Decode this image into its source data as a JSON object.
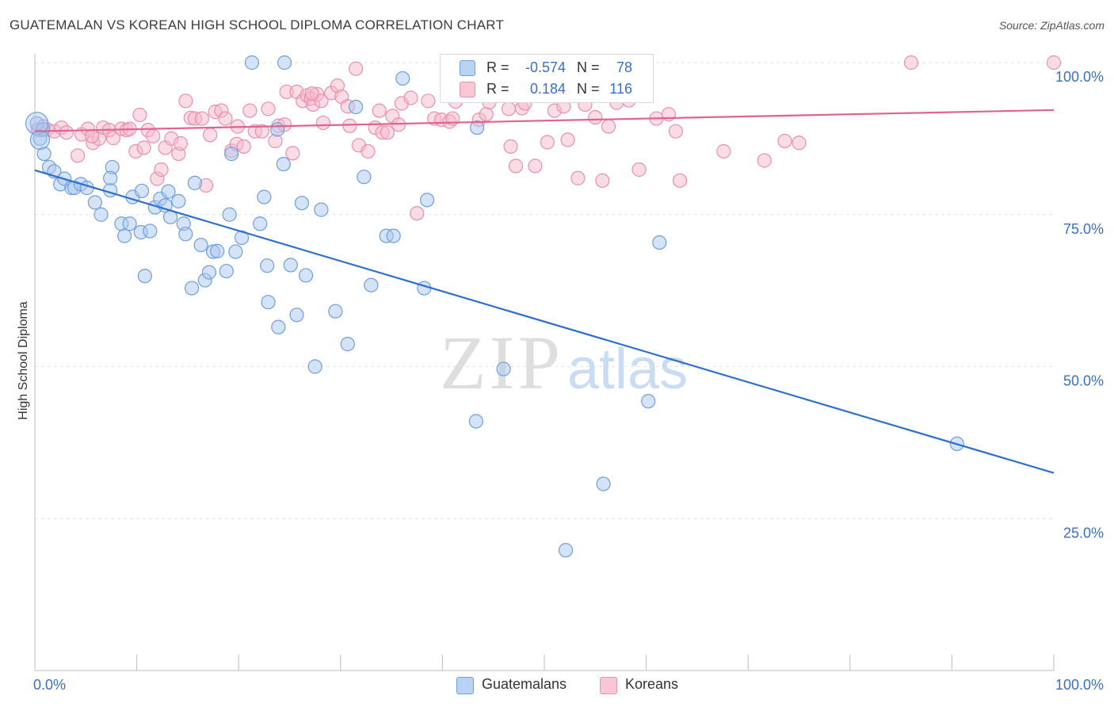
{
  "title": "GUATEMALAN VS KOREAN HIGH SCHOOL DIPLOMA CORRELATION CHART",
  "source": "Source: ZipAtlas.com",
  "watermark": {
    "zip": "ZIP",
    "atlas": "atlas"
  },
  "legend_top": [
    {
      "r_label": "R =",
      "r_value": "-0.574",
      "n_label": "N =",
      "n_value": "78"
    },
    {
      "r_label": "R =",
      "r_value": "0.184",
      "n_label": "N =",
      "n_value": "116"
    }
  ],
  "legend_bottom": [
    "Guatemalans",
    "Koreans"
  ],
  "colors": {
    "guatemalans_fill": "#a9c8f0",
    "guatemalans_stroke": "#6f9fdc",
    "guatemalans_line": "#2f6fd0",
    "koreans_fill": "#f6b9cb",
    "koreans_stroke": "#ea8fae",
    "koreans_line": "#e0628f",
    "axis_tick_label": "#3a6fc8",
    "grid": "#e2e2e2"
  },
  "chart_data": {
    "type": "scatter",
    "title": "GUATEMALAN VS KOREAN HIGH SCHOOL DIPLOMA CORRELATION CHART",
    "xlabel": "",
    "ylabel": "High School Diploma",
    "xlim": [
      0,
      100
    ],
    "ylim": [
      0,
      100
    ],
    "x_tick_labels": [
      "0.0%",
      "100.0%"
    ],
    "y_tick_labels": [
      {
        "value": 100,
        "label": "100.0%"
      },
      {
        "value": 75,
        "label": "75.0%"
      },
      {
        "value": 50,
        "label": "50.0%"
      },
      {
        "value": 25,
        "label": "25.0%"
      }
    ],
    "grid": true,
    "legend_position": "bottom",
    "series": [
      {
        "name": "Guatemalans",
        "r": -0.574,
        "n": 78,
        "trend": {
          "x": [
            0,
            100
          ],
          "y": [
            82.3,
            32.5
          ]
        },
        "points": [
          [
            0.2,
            90.0
          ],
          [
            0.5,
            87.5
          ],
          [
            0.9,
            85.0
          ],
          [
            1.4,
            82.8
          ],
          [
            1.9,
            82.1
          ],
          [
            2.5,
            80.0
          ],
          [
            2.9,
            80.9
          ],
          [
            3.6,
            79.4
          ],
          [
            3.9,
            79.4
          ],
          [
            4.5,
            80.0
          ],
          [
            5.1,
            79.4
          ],
          [
            5.9,
            77.0
          ],
          [
            6.5,
            75.0
          ],
          [
            7.4,
            79.0
          ],
          [
            7.6,
            82.8
          ],
          [
            7.4,
            81.0
          ],
          [
            8.5,
            73.5
          ],
          [
            8.8,
            71.5
          ],
          [
            9.3,
            73.5
          ],
          [
            9.6,
            77.9
          ],
          [
            10.4,
            72.1
          ],
          [
            10.5,
            78.9
          ],
          [
            10.8,
            64.9
          ],
          [
            11.3,
            72.3
          ],
          [
            11.8,
            76.2
          ],
          [
            12.3,
            77.6
          ],
          [
            12.8,
            76.5
          ],
          [
            13.1,
            78.8
          ],
          [
            13.3,
            74.6
          ],
          [
            14.1,
            77.2
          ],
          [
            14.6,
            73.5
          ],
          [
            14.8,
            71.8
          ],
          [
            15.4,
            62.9
          ],
          [
            15.7,
            80.2
          ],
          [
            16.3,
            70.0
          ],
          [
            16.7,
            64.2
          ],
          [
            17.1,
            65.5
          ],
          [
            17.5,
            68.9
          ],
          [
            17.9,
            69.0
          ],
          [
            18.8,
            65.7
          ],
          [
            19.1,
            75.0
          ],
          [
            19.3,
            85.0
          ],
          [
            19.7,
            68.9
          ],
          [
            20.3,
            71.2
          ],
          [
            21.3,
            100.0
          ],
          [
            22.1,
            73.5
          ],
          [
            22.5,
            77.9
          ],
          [
            22.8,
            66.6
          ],
          [
            22.9,
            60.6
          ],
          [
            23.8,
            89.0
          ],
          [
            23.9,
            56.5
          ],
          [
            24.4,
            83.3
          ],
          [
            24.5,
            100.0
          ],
          [
            25.1,
            66.7
          ],
          [
            25.7,
            58.5
          ],
          [
            26.2,
            76.9
          ],
          [
            26.6,
            65.0
          ],
          [
            27.5,
            50.0
          ],
          [
            28.1,
            75.8
          ],
          [
            29.5,
            59.1
          ],
          [
            30.7,
            53.7
          ],
          [
            31.5,
            92.7
          ],
          [
            32.3,
            81.2
          ],
          [
            33.0,
            63.4
          ],
          [
            34.5,
            71.5
          ],
          [
            35.2,
            71.5
          ],
          [
            36.1,
            97.4
          ],
          [
            38.2,
            62.9
          ],
          [
            38.5,
            77.4
          ],
          [
            43.3,
            41.0
          ],
          [
            43.4,
            89.3
          ],
          [
            46.0,
            49.6
          ],
          [
            52.1,
            19.8
          ],
          [
            55.8,
            30.7
          ],
          [
            60.2,
            44.3
          ],
          [
            61.3,
            70.4
          ],
          [
            90.5,
            37.3
          ],
          [
            0.8,
            89.0
          ]
        ]
      },
      {
        "name": "Koreans",
        "r": 0.184,
        "n": 116,
        "trend": {
          "x": [
            0,
            100
          ],
          "y": [
            88.7,
            92.2
          ]
        },
        "points": [
          [
            0.4,
            88.9
          ],
          [
            0.8,
            89.5
          ],
          [
            1.2,
            89.0
          ],
          [
            1.9,
            88.7
          ],
          [
            2.6,
            89.3
          ],
          [
            3.1,
            88.5
          ],
          [
            4.2,
            84.7
          ],
          [
            4.6,
            88.2
          ],
          [
            5.2,
            89.1
          ],
          [
            5.7,
            86.8
          ],
          [
            6.3,
            87.5
          ],
          [
            6.7,
            89.3
          ],
          [
            7.3,
            88.9
          ],
          [
            7.7,
            87.6
          ],
          [
            8.5,
            89.1
          ],
          [
            9.0,
            88.9
          ],
          [
            9.3,
            89.1
          ],
          [
            9.9,
            85.4
          ],
          [
            10.3,
            91.4
          ],
          [
            10.7,
            86.0
          ],
          [
            11.1,
            88.9
          ],
          [
            11.6,
            87.9
          ],
          [
            12.0,
            80.9
          ],
          [
            12.4,
            82.4
          ],
          [
            12.8,
            86.0
          ],
          [
            13.4,
            87.5
          ],
          [
            14.1,
            85.0
          ],
          [
            14.3,
            86.7
          ],
          [
            14.8,
            93.7
          ],
          [
            15.3,
            90.9
          ],
          [
            15.7,
            90.8
          ],
          [
            16.4,
            90.8
          ],
          [
            16.8,
            79.8
          ],
          [
            17.2,
            88.1
          ],
          [
            17.7,
            91.9
          ],
          [
            18.3,
            92.1
          ],
          [
            18.7,
            90.8
          ],
          [
            19.3,
            85.5
          ],
          [
            19.8,
            86.6
          ],
          [
            19.9,
            89.5
          ],
          [
            20.5,
            86.2
          ],
          [
            21.1,
            92.1
          ],
          [
            21.6,
            88.7
          ],
          [
            22.3,
            88.7
          ],
          [
            22.9,
            92.4
          ],
          [
            23.6,
            87.1
          ],
          [
            23.9,
            89.6
          ],
          [
            24.5,
            89.8
          ],
          [
            24.7,
            95.2
          ],
          [
            25.3,
            85.1
          ],
          [
            25.7,
            95.2
          ],
          [
            26.3,
            93.7
          ],
          [
            26.7,
            94.6
          ],
          [
            27.1,
            94.1
          ],
          [
            27.3,
            93.1
          ],
          [
            27.7,
            94.8
          ],
          [
            28.1,
            93.7
          ],
          [
            28.3,
            90.1
          ],
          [
            29.1,
            95.0
          ],
          [
            29.7,
            96.2
          ],
          [
            30.1,
            94.4
          ],
          [
            30.7,
            92.8
          ],
          [
            30.9,
            89.6
          ],
          [
            31.5,
            99.0
          ],
          [
            31.8,
            86.4
          ],
          [
            32.7,
            85.4
          ],
          [
            33.4,
            89.3
          ],
          [
            33.8,
            92.1
          ],
          [
            34.1,
            88.5
          ],
          [
            34.6,
            88.5
          ],
          [
            35.1,
            91.2
          ],
          [
            35.7,
            89.8
          ],
          [
            36.0,
            93.3
          ],
          [
            36.9,
            94.2
          ],
          [
            37.5,
            75.2
          ],
          [
            38.6,
            93.7
          ],
          [
            39.2,
            90.8
          ],
          [
            39.9,
            90.6
          ],
          [
            40.7,
            90.3
          ],
          [
            41.0,
            90.8
          ],
          [
            41.3,
            93.6
          ],
          [
            42.3,
            99.8
          ],
          [
            43.6,
            90.6
          ],
          [
            44.3,
            91.5
          ],
          [
            44.6,
            93.5
          ],
          [
            46.7,
            86.2
          ],
          [
            47.2,
            83.0
          ],
          [
            47.8,
            92.5
          ],
          [
            48.1,
            93.3
          ],
          [
            49.1,
            83.0
          ],
          [
            50.3,
            86.9
          ],
          [
            51.0,
            92.1
          ],
          [
            51.9,
            92.8
          ],
          [
            52.3,
            87.3
          ],
          [
            53.3,
            81.0
          ],
          [
            54.0,
            93.1
          ],
          [
            55.0,
            91.0
          ],
          [
            55.7,
            80.6
          ],
          [
            56.3,
            89.5
          ],
          [
            57.1,
            93.4
          ],
          [
            58.3,
            93.8
          ],
          [
            59.3,
            82.4
          ],
          [
            61.0,
            90.8
          ],
          [
            62.2,
            91.5
          ],
          [
            62.9,
            88.7
          ],
          [
            63.3,
            80.6
          ],
          [
            67.6,
            85.4
          ],
          [
            71.6,
            83.9
          ],
          [
            73.6,
            87.1
          ],
          [
            75.0,
            86.8
          ],
          [
            86.0,
            100.0
          ],
          [
            100.0,
            100.0
          ],
          [
            0.3,
            89.0
          ],
          [
            5.6,
            87.9
          ],
          [
            27.2,
            94.9
          ],
          [
            46.5,
            92.4
          ]
        ]
      }
    ]
  }
}
